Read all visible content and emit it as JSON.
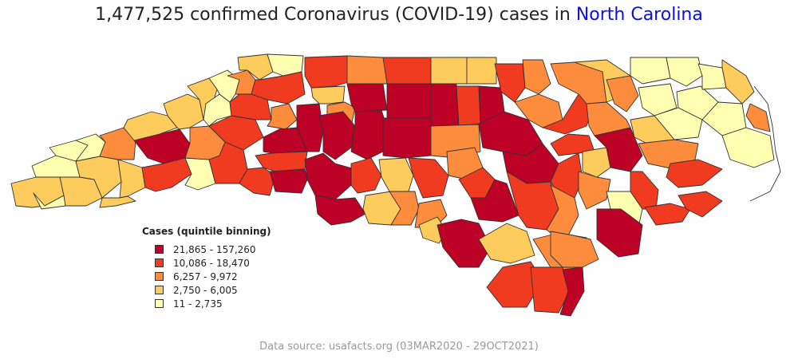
{
  "header": {
    "count": "1,477,525",
    "title_text": " confirmed Coronavirus (COVID-19) cases in ",
    "place": "North Carolina"
  },
  "legend": {
    "title": "Cases (quintile binning)",
    "bins": [
      {
        "label": "21,865 - 157,260",
        "color": "#bd0026"
      },
      {
        "label": "10,086 - 18,470",
        "color": "#f03b20"
      },
      {
        "label": "6,257 - 9,972",
        "color": "#fd8d3c"
      },
      {
        "label": "2,750 - 6,005",
        "color": "#fecc5c"
      },
      {
        "label": "11 - 2,735",
        "color": "#ffffb2"
      }
    ]
  },
  "footer": {
    "source": "Data source: usafacts.org (03MAR2020 - 29OCT2021)"
  },
  "map": {
    "state": "North Carolina",
    "classification": "quintile binning",
    "counties_note": "100 counties colored by case quintile",
    "border_color": "#333333"
  }
}
